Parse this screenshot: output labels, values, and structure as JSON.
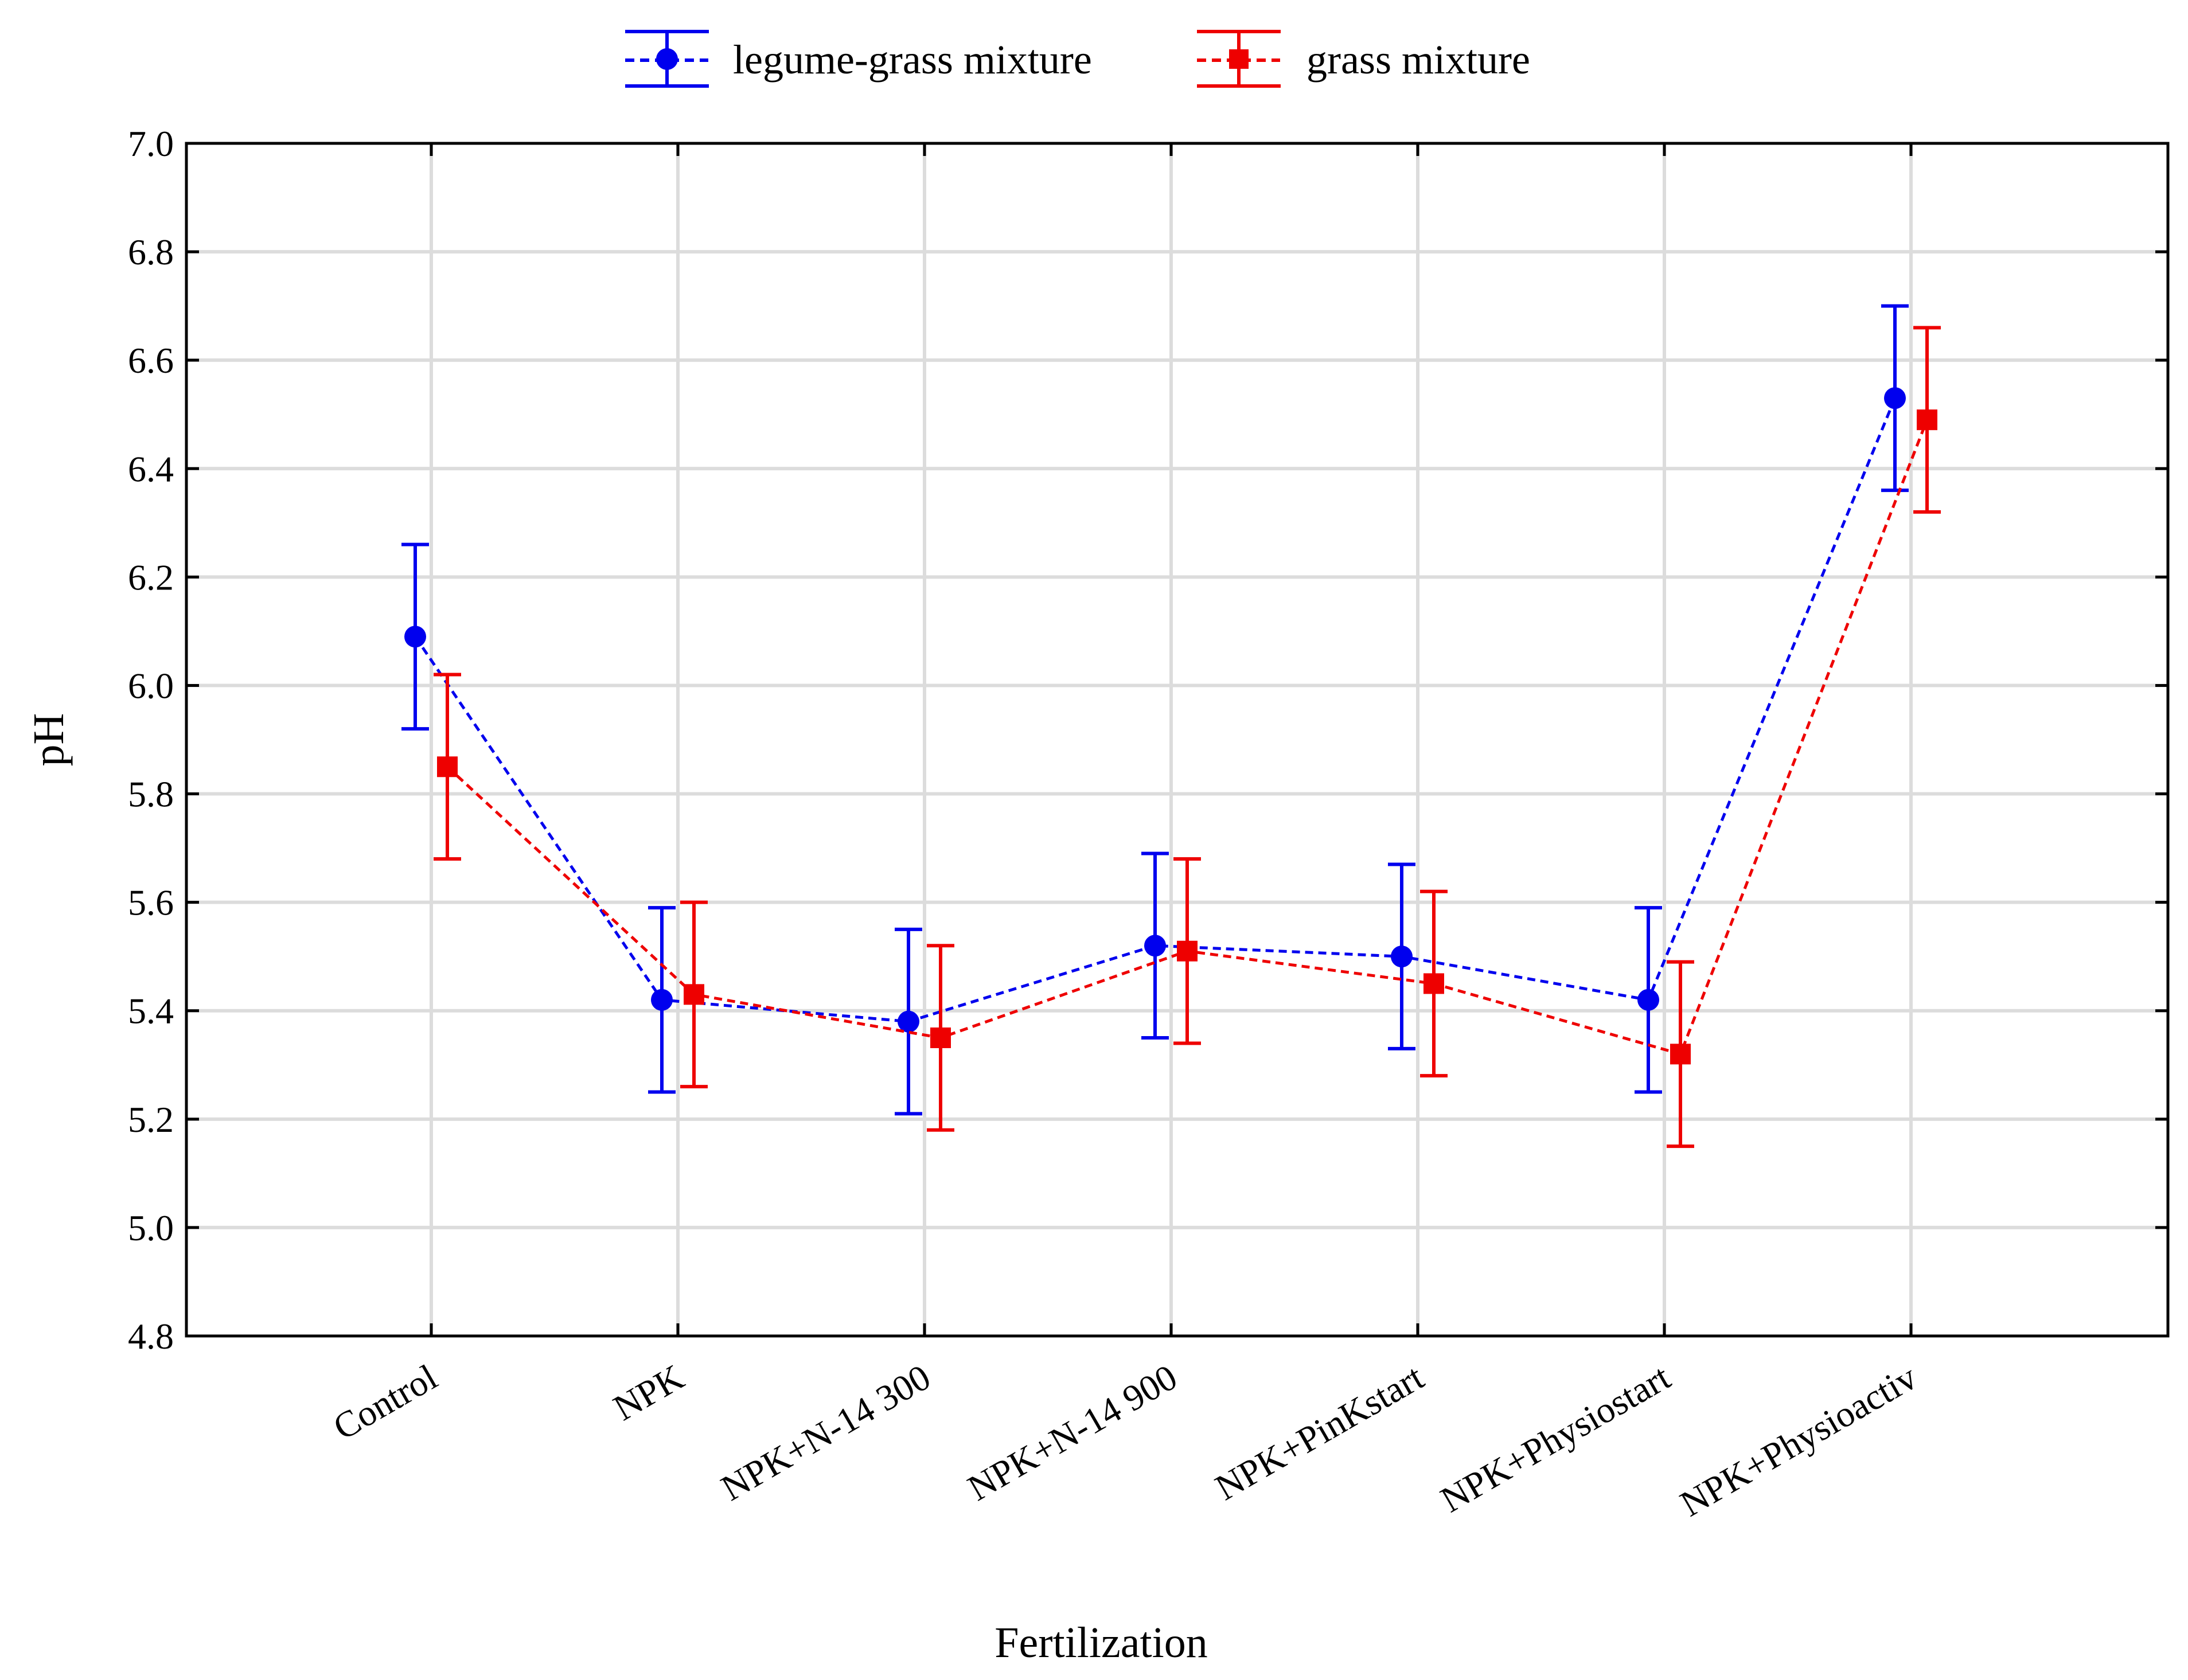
{
  "chart_data": {
    "type": "line",
    "title": "",
    "xlabel": "Fertilization",
    "ylabel": "pH",
    "ylim": [
      4.8,
      7.0
    ],
    "yticks": [
      "4.8",
      "5.0",
      "5.2",
      "5.4",
      "5.6",
      "5.8",
      "6.0",
      "6.2",
      "6.4",
      "6.6",
      "6.8",
      "7.0"
    ],
    "grid": true,
    "legend_position": "top-center",
    "categories": [
      "Control",
      "NPK",
      "NPK+N-14 300",
      "NPK+N-14 900",
      "NPK+PinKstart",
      "NPK+Physiostart",
      "NPK+Physioactiv"
    ],
    "series": [
      {
        "name": "legume-grass mixture",
        "color": "#0000ee",
        "marker": "circle",
        "line_style": "dashed",
        "values": [
          6.09,
          5.42,
          5.38,
          5.52,
          5.5,
          5.42,
          6.53
        ],
        "error_low": [
          5.92,
          5.25,
          5.21,
          5.35,
          5.33,
          5.25,
          6.36
        ],
        "error_high": [
          6.26,
          5.59,
          5.55,
          5.69,
          5.67,
          5.59,
          6.7
        ]
      },
      {
        "name": "grass mixture",
        "color": "#ee0000",
        "marker": "square",
        "line_style": "dashed",
        "values": [
          5.85,
          5.43,
          5.35,
          5.51,
          5.45,
          5.32,
          6.49
        ],
        "error_low": [
          5.68,
          5.26,
          5.18,
          5.34,
          5.28,
          5.15,
          6.32
        ],
        "error_high": [
          6.02,
          5.6,
          5.52,
          5.68,
          5.62,
          5.49,
          6.66
        ]
      }
    ]
  }
}
